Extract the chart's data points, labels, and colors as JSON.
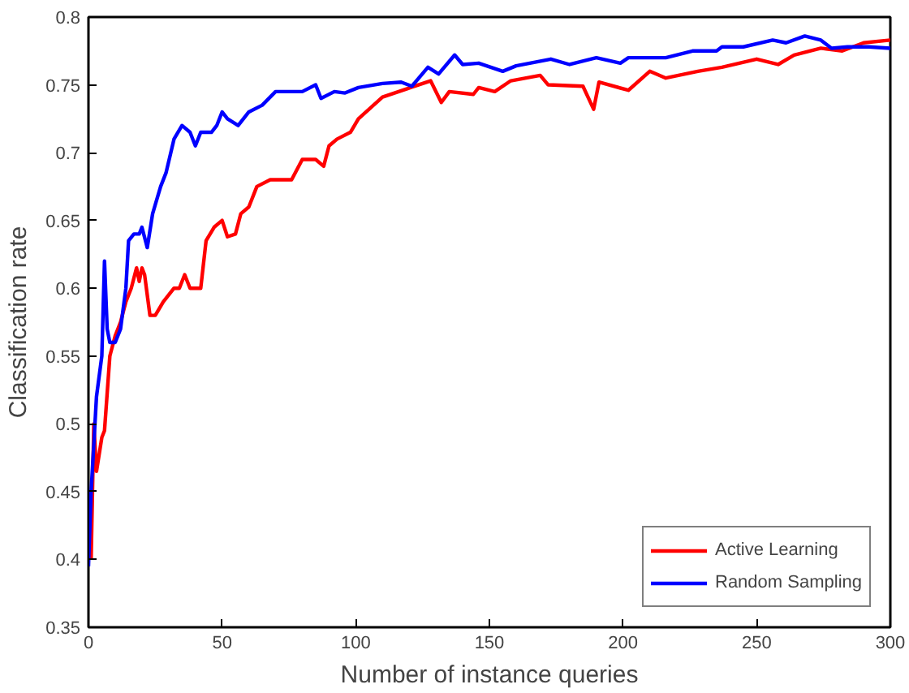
{
  "chart_data": {
    "type": "line",
    "xlabel": "Number of instance queries",
    "ylabel": "Classification rate",
    "xlim": [
      0,
      300
    ],
    "ylim": [
      0.35,
      0.8
    ],
    "xticks": [
      0,
      50,
      100,
      150,
      200,
      250,
      300
    ],
    "yticks": [
      0.35,
      0.4,
      0.45,
      0.5,
      0.55,
      0.6,
      0.65,
      0.7,
      0.75,
      0.8
    ],
    "grid": false,
    "legend": "bottom right",
    "line_style": "solid",
    "series": [
      {
        "name": "Active Learning",
        "color": "#ff0000",
        "x": [
          1,
          2,
          3,
          5,
          6,
          8,
          10,
          12,
          14,
          16,
          18,
          19,
          20,
          21,
          23,
          25,
          28,
          32,
          34,
          36,
          38,
          42,
          44,
          47,
          50,
          52,
          55,
          57,
          60,
          63,
          68,
          72,
          76,
          80,
          85,
          88,
          90,
          93,
          98,
          101,
          110,
          119,
          128,
          132,
          135,
          144,
          146,
          152,
          158,
          169,
          172,
          185,
          189,
          191,
          202,
          210,
          216,
          228,
          237,
          250,
          258,
          264,
          274,
          282,
          290,
          300
        ],
        "values": [
          0.4,
          0.5,
          0.465,
          0.49,
          0.495,
          0.55,
          0.565,
          0.575,
          0.59,
          0.6,
          0.615,
          0.605,
          0.615,
          0.61,
          0.58,
          0.58,
          0.59,
          0.6,
          0.6,
          0.61,
          0.6,
          0.6,
          0.635,
          0.645,
          0.65,
          0.638,
          0.64,
          0.655,
          0.66,
          0.675,
          0.68,
          0.68,
          0.68,
          0.695,
          0.695,
          0.69,
          0.705,
          0.71,
          0.715,
          0.725,
          0.741,
          0.747,
          0.753,
          0.737,
          0.745,
          0.743,
          0.748,
          0.745,
          0.753,
          0.757,
          0.75,
          0.749,
          0.732,
          0.752,
          0.746,
          0.76,
          0.755,
          0.76,
          0.763,
          0.769,
          0.765,
          0.772,
          0.777,
          0.775,
          0.781,
          0.783
        ]
      },
      {
        "name": "Random Sampling",
        "color": "#0000ff",
        "x": [
          0,
          1,
          3,
          5,
          6,
          7,
          8,
          10,
          12,
          14,
          15,
          17,
          19,
          20,
          22,
          24,
          27,
          29,
          32,
          35,
          38,
          40,
          42,
          46,
          48,
          50,
          52,
          56,
          60,
          65,
          70,
          75,
          80,
          85,
          87,
          92,
          96,
          101,
          110,
          117,
          121,
          127,
          131,
          137,
          140,
          146,
          155,
          160,
          173,
          180,
          190,
          199,
          202,
          216,
          226,
          235,
          237,
          245,
          256,
          261,
          268,
          274,
          278,
          284,
          292,
          300
        ],
        "values": [
          0.395,
          0.45,
          0.52,
          0.55,
          0.62,
          0.57,
          0.56,
          0.56,
          0.57,
          0.6,
          0.635,
          0.64,
          0.64,
          0.645,
          0.63,
          0.655,
          0.675,
          0.685,
          0.71,
          0.72,
          0.715,
          0.705,
          0.715,
          0.715,
          0.72,
          0.73,
          0.725,
          0.72,
          0.73,
          0.735,
          0.745,
          0.745,
          0.745,
          0.75,
          0.74,
          0.745,
          0.744,
          0.748,
          0.751,
          0.752,
          0.749,
          0.763,
          0.758,
          0.772,
          0.765,
          0.766,
          0.76,
          0.764,
          0.769,
          0.765,
          0.77,
          0.766,
          0.77,
          0.77,
          0.775,
          0.775,
          0.778,
          0.778,
          0.783,
          0.781,
          0.786,
          0.783,
          0.777,
          0.778,
          0.778,
          0.777
        ]
      }
    ]
  }
}
